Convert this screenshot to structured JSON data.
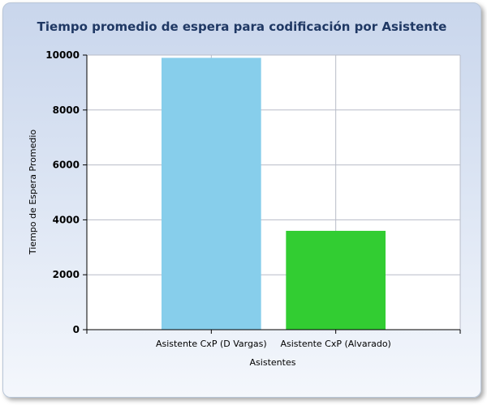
{
  "chart_data": {
    "type": "bar",
    "title": "Tiempo promedio de espera para codificación por Asistente",
    "xlabel": "Asistentes",
    "ylabel": "Tiempo de Espera Promedio",
    "categories": [
      "Asistente CxP (D Vargas)",
      "Asistente CxP (Alvarado)"
    ],
    "values": [
      9900,
      3600
    ],
    "colors": [
      "#87ceeb",
      "#32cd32"
    ],
    "ylim": [
      0,
      10000
    ],
    "yticks": [
      0,
      2000,
      4000,
      6000,
      8000,
      10000
    ],
    "grid": true,
    "legend": "none"
  }
}
